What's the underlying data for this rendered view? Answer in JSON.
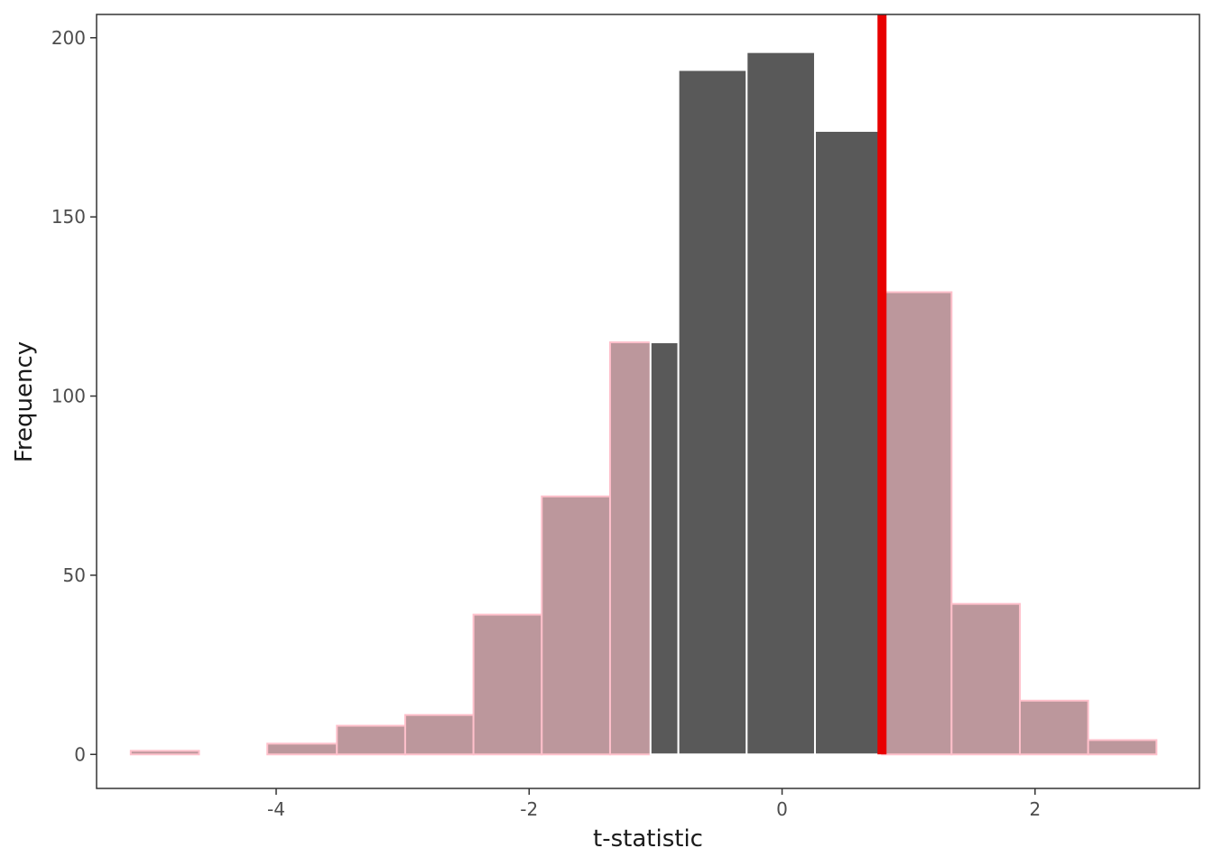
{
  "chart_data": {
    "type": "bar",
    "title": "",
    "xlabel": "t-statistic",
    "ylabel": "Frequency",
    "xlim": [
      -5.42,
      3.3
    ],
    "ylim": [
      -9.5,
      206.5
    ],
    "x_ticks": [
      -4,
      -2,
      0,
      2
    ],
    "y_ticks": [
      0,
      50,
      100,
      150,
      200
    ],
    "x_tick_labels": [
      "-4",
      "-2",
      "0",
      "2"
    ],
    "y_tick_labels": [
      "0",
      "50",
      "100",
      "150",
      "200"
    ],
    "grid": false,
    "legend": "none",
    "observed_statistic": 0.79,
    "colors": {
      "tail_fill": "#bc979c",
      "tail_outline": "#ffc0cb",
      "center_fill": "#595959",
      "center_outline": "#ffffff",
      "marker_line": "#e80000",
      "panel_border": "#333333"
    },
    "bins": [
      {
        "x0": -5.15,
        "x1": -4.61,
        "count": 1,
        "region": "tail"
      },
      {
        "x0": -4.61,
        "x1": -4.07,
        "count": 0,
        "region": "tail"
      },
      {
        "x0": -4.07,
        "x1": -3.52,
        "count": 3,
        "region": "tail"
      },
      {
        "x0": -3.52,
        "x1": -2.98,
        "count": 8,
        "region": "tail"
      },
      {
        "x0": -2.98,
        "x1": -2.44,
        "count": 11,
        "region": "tail"
      },
      {
        "x0": -2.44,
        "x1": -1.9,
        "count": 39,
        "region": "tail"
      },
      {
        "x0": -1.9,
        "x1": -1.36,
        "count": 72,
        "region": "tail"
      },
      {
        "x0": -1.36,
        "x1": -1.04,
        "count": 115,
        "region": "tail"
      },
      {
        "x0": -1.04,
        "x1": -0.82,
        "count": 115,
        "region": "center"
      },
      {
        "x0": -0.82,
        "x1": -0.28,
        "count": 191,
        "region": "center"
      },
      {
        "x0": -0.28,
        "x1": 0.26,
        "count": 196,
        "region": "center"
      },
      {
        "x0": 0.26,
        "x1": 0.79,
        "count": 174,
        "region": "center"
      },
      {
        "x0": 0.79,
        "x1": 1.34,
        "count": 129,
        "region": "tail"
      },
      {
        "x0": 1.34,
        "x1": 1.88,
        "count": 42,
        "region": "tail"
      },
      {
        "x0": 1.88,
        "x1": 2.42,
        "count": 15,
        "region": "tail"
      },
      {
        "x0": 2.42,
        "x1": 2.96,
        "count": 4,
        "region": "tail"
      }
    ]
  }
}
